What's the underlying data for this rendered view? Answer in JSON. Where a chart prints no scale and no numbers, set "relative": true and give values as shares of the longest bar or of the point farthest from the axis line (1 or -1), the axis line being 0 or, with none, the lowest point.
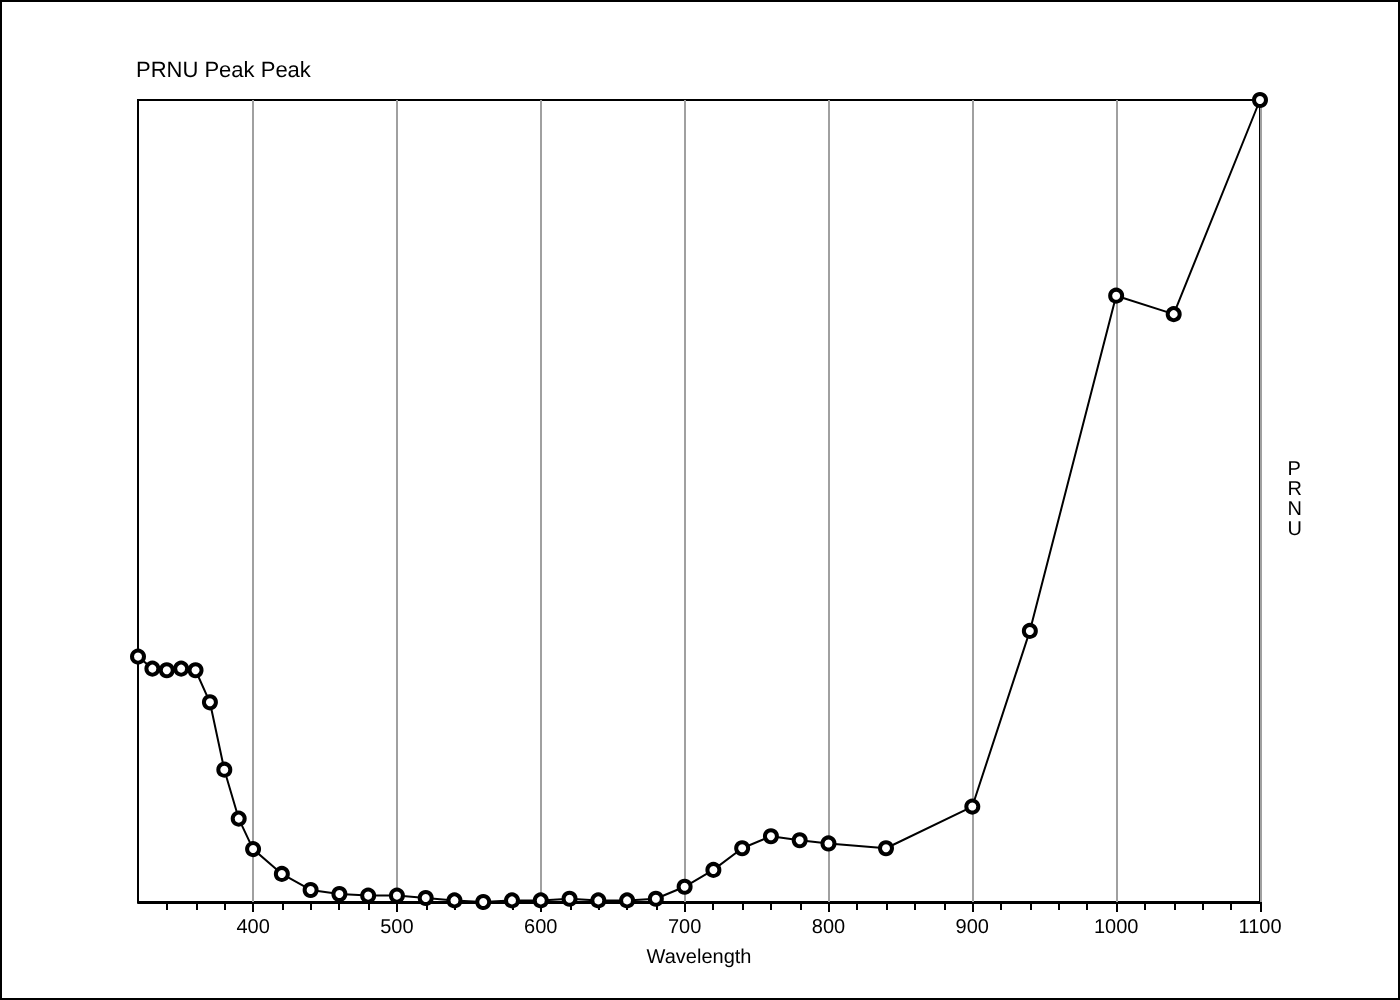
{
  "chart_data": {
    "type": "line",
    "title": "PRNU Peak Peak",
    "xlabel": "Wavelength",
    "ylabel": "PRNU",
    "relative": true,
    "tick_labels": "x",
    "grid": "x",
    "marker": "circle",
    "line_style": "solid",
    "xlim": [
      320,
      1100
    ],
    "xticks": [
      400,
      500,
      600,
      700,
      800,
      900,
      1000,
      1100
    ],
    "series": [
      {
        "color": "#000000",
        "x": [
          320,
          330,
          340,
          350,
          360,
          370,
          380,
          390,
          400,
          420,
          440,
          460,
          480,
          500,
          520,
          540,
          560,
          580,
          600,
          620,
          640,
          660,
          680,
          700,
          720,
          740,
          760,
          780,
          800,
          840,
          900,
          940,
          1000,
          1040,
          1100
        ],
        "values": [
          0.306,
          0.291,
          0.289,
          0.291,
          0.289,
          0.249,
          0.165,
          0.104,
          0.066,
          0.035,
          0.015,
          0.01,
          0.008,
          0.008,
          0.005,
          0.002,
          0,
          0.002,
          0.002,
          0.004,
          0.002,
          0.002,
          0.004,
          0.019,
          0.04,
          0.067,
          0.082,
          0.077,
          0.073,
          0.067,
          0.119,
          0.338,
          0.756,
          0.733,
          1
        ]
      }
    ]
  }
}
